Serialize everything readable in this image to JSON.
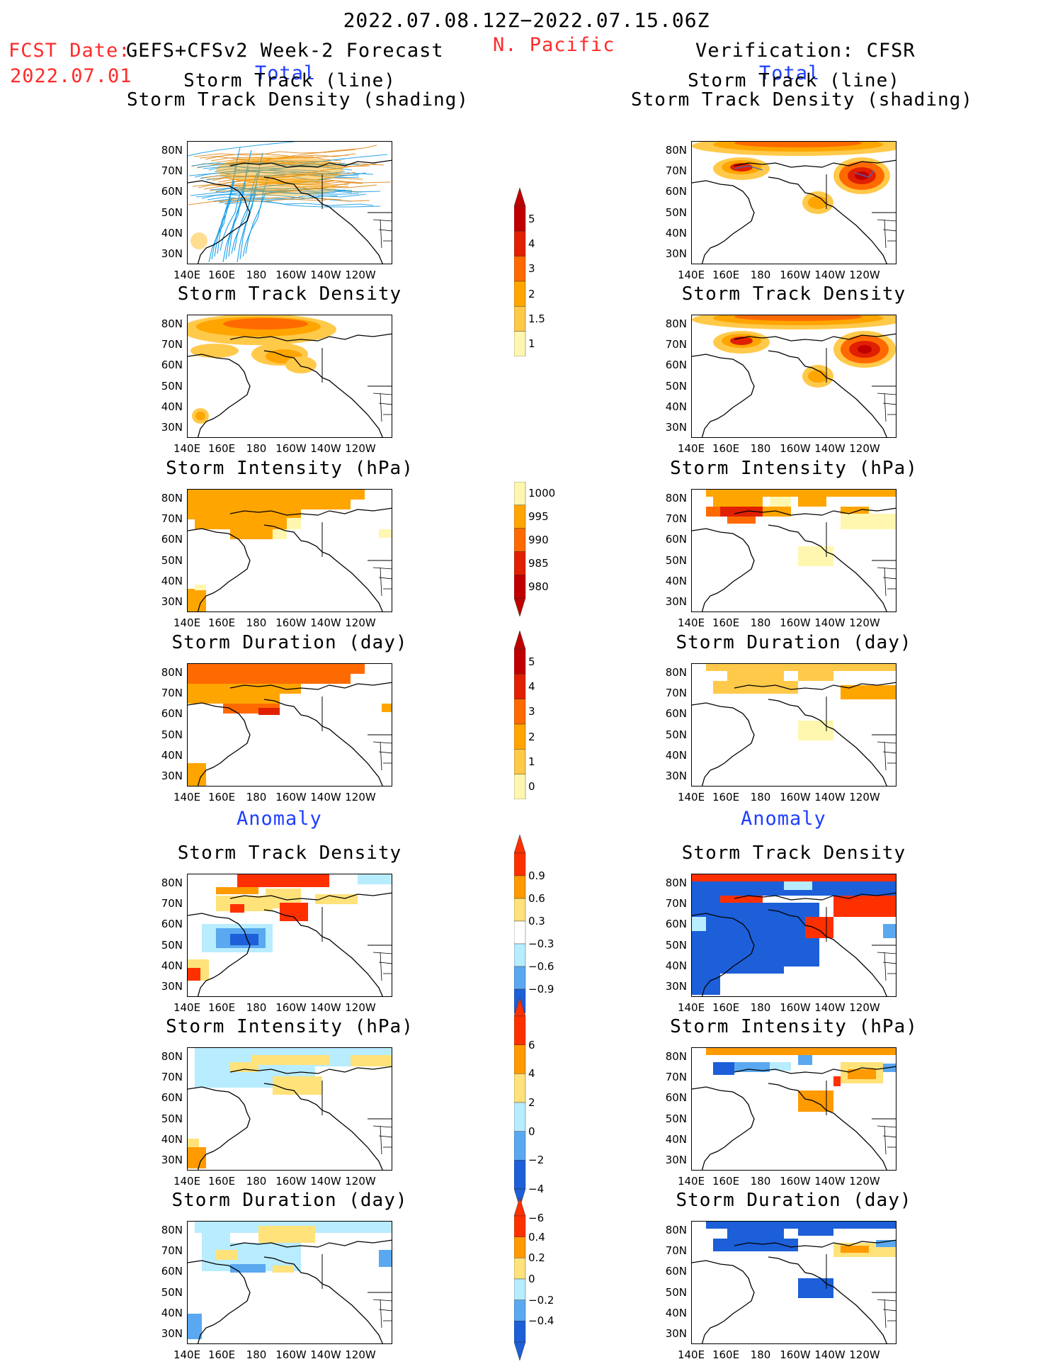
{
  "header": {
    "period": "2022.07.08.12Z−2022.07.15.06Z",
    "fcst_label": "FCST Date:",
    "fcst_model": "GEFS+CFSv2 Week-2 Forecast",
    "fcst_date": "2022.07.01",
    "region": "N. Pacific",
    "verification": "Verification: CFSR",
    "left_total": "Total",
    "right_total": "Total",
    "left_anomaly": "Anomaly",
    "right_anomaly": "Anomaly"
  },
  "panel_titles": {
    "track_line": "Storm Track (line)",
    "track_shading": "Storm Track Density (shading)",
    "density": "Storm Track Density",
    "intensity": "Storm Intensity (hPa)",
    "duration": "Storm Duration (day)"
  },
  "axes": {
    "lat_labels": [
      "80N",
      "70N",
      "60N",
      "50N",
      "40N",
      "30N"
    ],
    "lon_labels": [
      "140E",
      "160E",
      "180",
      "160W",
      "140W",
      "120W"
    ]
  },
  "colorbars": {
    "density_total": {
      "labels": [
        "5",
        "4",
        "3",
        "2",
        "1.5",
        "1"
      ],
      "colors": [
        "#c00000",
        "#e02000",
        "#ff6a00",
        "#ffa500",
        "#ffc94a",
        "#fff7b0"
      ]
    },
    "intensity_total": {
      "labels": [
        "1000",
        "995",
        "990",
        "985",
        "980"
      ],
      "colors": [
        "#fff7b0",
        "#ffa500",
        "#ff6a00",
        "#e02000",
        "#c00000"
      ]
    },
    "duration_total": {
      "labels": [
        "5",
        "4",
        "3",
        "2",
        "1",
        "0"
      ],
      "colors": [
        "#c00000",
        "#e02000",
        "#ff6a00",
        "#ffa500",
        "#ffc94a",
        "#fff7b0"
      ]
    },
    "density_anom": {
      "labels": [
        "0.9",
        "0.6",
        "0.3",
        "−0.3",
        "−0.6",
        "−0.9"
      ],
      "colors": [
        "#ff3000",
        "#ff9a00",
        "#ffe27a",
        "#ffffff",
        "#b8ecff",
        "#5aa8f0",
        "#1c5fd8"
      ]
    },
    "intensity_anom": {
      "labels": [
        "6",
        "4",
        "2",
        "0",
        "−2",
        "−4",
        "−6"
      ],
      "colors": [
        "#ff3000",
        "#ff9a00",
        "#ffe27a",
        "#b8ecff",
        "#5aa8f0",
        "#1c5fd8"
      ]
    },
    "duration_anom": {
      "labels": [
        "0.4",
        "0.2",
        "0",
        "−0.2",
        "−0.4"
      ],
      "colors": [
        "#ff3000",
        "#ff9a00",
        "#ffe27a",
        "#b8ecff",
        "#5aa8f0",
        "#1c5fd8"
      ]
    }
  }
}
